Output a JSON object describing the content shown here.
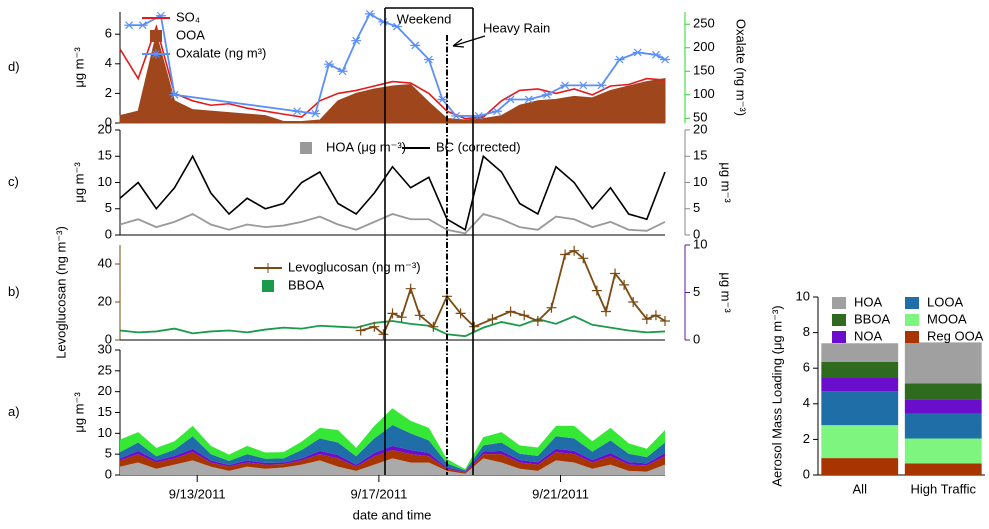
{
  "chart_data": [
    {
      "type": "line",
      "label": "d)",
      "ylabel": "μg m⁻³",
      "y2label": "Oxalate (ng m⁻³)",
      "y2color": "#22dd22",
      "xlim": [
        11.3,
        23.3
      ],
      "ylim": [
        0,
        7.5
      ],
      "yticks": [
        0,
        2,
        4,
        6
      ],
      "y2lim": [
        40,
        276
      ],
      "y2ticks": [
        50,
        100,
        150,
        200,
        250
      ],
      "annotations": [
        "Weekend",
        "Heavy Rain"
      ],
      "x": [
        11.3,
        11.7,
        12.1,
        12.5,
        12.9,
        13.3,
        13.7,
        14.1,
        14.5,
        14.9,
        15.3,
        15.7,
        16.1,
        16.5,
        16.9,
        17.3,
        17.7,
        18.1,
        18.5,
        18.9,
        19.3,
        19.7,
        20.1,
        20.5,
        20.9,
        21.3,
        21.7,
        22.1,
        22.5,
        22.9,
        23.3
      ],
      "series": [
        {
          "name": "SO₄",
          "color": "#e41a1c",
          "mark": "line",
          "values": [
            5,
            3,
            6.5,
            2,
            1.5,
            1.2,
            1.3,
            1.0,
            0.8,
            0.6,
            0.4,
            1.5,
            2.0,
            2.2,
            2.5,
            2.8,
            2.7,
            2.0,
            0.8,
            0.3,
            0.4,
            1.5,
            2.2,
            2.3,
            2.0,
            2.3,
            1.9,
            2.5,
            2.6,
            3.0,
            2.9
          ]
        },
        {
          "name": "OOA",
          "color": "#a0461c",
          "mark": "area",
          "values": [
            0.5,
            0.8,
            6.0,
            1.5,
            0.9,
            0.8,
            0.7,
            0.6,
            0.5,
            0.1,
            0.1,
            0.2,
            1.5,
            2.0,
            2.3,
            2.5,
            2.6,
            1.4,
            0.3,
            0.2,
            0.3,
            0.5,
            1.2,
            1.5,
            1.6,
            1.8,
            1.7,
            2.2,
            2.5,
            2.8,
            3.0
          ]
        },
        {
          "name": "Oxalate (ng m³)",
          "color": "#5b8ff9",
          "mark": "asterisk",
          "axis": "y2",
          "x": [
            11.5,
            11.8,
            12.2,
            12.5,
            15.2,
            15.6,
            15.9,
            16.2,
            16.5,
            16.8,
            17.1,
            17.4,
            17.8,
            18.1,
            18.4,
            18.7,
            19.2,
            19.6,
            19.9,
            20.3,
            20.7,
            21.1,
            21.5,
            21.9,
            22.3,
            22.7,
            23.1,
            23.3
          ],
          "values": [
            248,
            248,
            268,
            100,
            65,
            60,
            165,
            150,
            215,
            272,
            255,
            245,
            205,
            175,
            90,
            55,
            55,
            65,
            90,
            90,
            100,
            120,
            120,
            120,
            175,
            190,
            185,
            175
          ]
        }
      ]
    },
    {
      "type": "line",
      "label": "c)",
      "ylabel": "μg m⁻³",
      "y2label": "μg m⁻³",
      "y2color": "#888888",
      "xlim": [
        11.3,
        23.3
      ],
      "ylim": [
        0,
        20
      ],
      "yticks": [
        0,
        5,
        10,
        15,
        20
      ],
      "y2lim": [
        0,
        20
      ],
      "y2ticks": [
        0,
        5,
        10,
        15,
        20
      ],
      "x": [
        11.3,
        11.7,
        12.1,
        12.5,
        12.9,
        13.3,
        13.7,
        14.1,
        14.5,
        14.9,
        15.3,
        15.7,
        16.1,
        16.5,
        16.9,
        17.3,
        17.7,
        18.1,
        18.5,
        18.9,
        19.3,
        19.7,
        20.1,
        20.5,
        20.9,
        21.3,
        21.7,
        22.1,
        22.5,
        22.9,
        23.3
      ],
      "series": [
        {
          "name": "HOA (μg m⁻³)",
          "color": "#999999",
          "mark": "square-line",
          "axis": "y2",
          "values": [
            2,
            3,
            1.5,
            2.5,
            4,
            2,
            1,
            2,
            1.5,
            1.8,
            2.5,
            3.5,
            2,
            1,
            2.5,
            4,
            3,
            3,
            1,
            0.3,
            4,
            3,
            1.5,
            1,
            3.5,
            3,
            1.5,
            2.5,
            1,
            0.8,
            2.5
          ]
        },
        {
          "name": "BC (corrected)",
          "color": "#000000",
          "mark": "line",
          "values": [
            7,
            10,
            5,
            9,
            15,
            8,
            4,
            7,
            5,
            6,
            10,
            12,
            6,
            4,
            8,
            13,
            9,
            11,
            3,
            1,
            15,
            12,
            6,
            4,
            13,
            10,
            5,
            9,
            4,
            3,
            12
          ]
        }
      ]
    },
    {
      "type": "line",
      "label": "b)",
      "ylabel": "Levoglucosan (ng m⁻³)",
      "ycolor": "#7a4a10",
      "y2label": "μg m⁻³",
      "y2color": "#5a1a9a",
      "xlim": [
        11.3,
        23.3
      ],
      "ylim": [
        0,
        50
      ],
      "yticks": [
        0,
        20,
        40
      ],
      "y2lim": [
        0,
        10
      ],
      "y2ticks": [
        0,
        5,
        10
      ],
      "x": [
        11.3,
        11.7,
        12.1,
        12.5,
        12.9,
        13.3,
        13.7,
        14.1,
        14.5,
        14.9,
        15.3,
        15.7,
        16.1,
        16.5,
        16.9,
        17.3,
        17.7,
        18.1,
        18.5,
        18.9,
        19.3,
        19.7,
        20.1,
        20.5,
        20.9,
        21.3,
        21.7,
        22.1,
        22.5,
        22.9,
        23.3
      ],
      "series": [
        {
          "name": "Levoglucosan (ng m⁻³)",
          "color": "#7a4a10",
          "mark": "plus",
          "x": [
            16.6,
            16.9,
            17.1,
            17.3,
            17.5,
            17.7,
            17.9,
            18.2,
            18.5,
            18.8,
            19.1,
            19.5,
            19.9,
            20.2,
            20.5,
            20.8,
            21.1,
            21.3,
            21.5,
            21.8,
            22.0,
            22.2,
            22.4,
            22.6,
            22.9,
            23.1,
            23.3
          ],
          "values": [
            5,
            7,
            3,
            14,
            12,
            27,
            13,
            7,
            23,
            14,
            7,
            11,
            15,
            13,
            10,
            17,
            45,
            47,
            43,
            26,
            15,
            35,
            29,
            20,
            11,
            13,
            10
          ]
        },
        {
          "name": "BBOA",
          "color": "#1a9a4a",
          "mark": "square-line",
          "axis": "y2",
          "values": [
            1.0,
            0.8,
            0.9,
            1.2,
            0.7,
            0.9,
            1.0,
            0.8,
            1.1,
            1.3,
            1.2,
            1.5,
            1.4,
            1.3,
            1.8,
            2.0,
            1.7,
            1.5,
            0.6,
            0.4,
            1.3,
            1.9,
            1.5,
            2.2,
            1.7,
            2.5,
            1.6,
            1.3,
            1.0,
            0.8,
            0.9
          ]
        }
      ]
    },
    {
      "type": "area",
      "label": "a)",
      "ylabel": "μg m⁻³",
      "xlabel": "date and time",
      "stacked": true,
      "xlim": [
        11.3,
        23.3
      ],
      "ylim": [
        0,
        30
      ],
      "yticks": [
        0,
        5,
        10,
        15,
        20,
        25,
        30
      ],
      "xticks": [
        {
          "value": 13,
          "label": "9/13/2011"
        },
        {
          "value": 17,
          "label": "9/17/2011"
        },
        {
          "value": 21,
          "label": "9/21/2011"
        }
      ],
      "x": [
        11.3,
        11.7,
        12.1,
        12.5,
        12.9,
        13.3,
        13.7,
        14.1,
        14.5,
        14.9,
        15.3,
        15.7,
        16.1,
        16.5,
        16.9,
        17.3,
        17.7,
        18.1,
        18.5,
        18.9,
        19.3,
        19.7,
        20.1,
        20.5,
        20.9,
        21.3,
        21.7,
        22.1,
        22.5,
        22.9,
        23.3
      ],
      "series": [
        {
          "color": "#aaaaaa",
          "values": [
            2,
            3,
            1.5,
            2.5,
            3.5,
            2,
            1,
            2,
            1.5,
            1.8,
            2.5,
            3.5,
            2,
            1,
            2.5,
            4,
            3,
            3,
            1,
            0.3,
            4,
            3,
            1.5,
            1,
            3.5,
            3,
            1.5,
            2.5,
            1,
            0.8,
            2.5
          ]
        },
        {
          "color": "#a83400",
          "values": [
            1.5,
            2,
            1.5,
            1.5,
            2,
            1,
            1,
            1,
            1,
            0.8,
            1,
            1.5,
            2,
            1,
            2,
            2,
            2,
            1.5,
            0.5,
            0.3,
            1,
            2,
            1.5,
            1.5,
            2,
            2,
            1.5,
            2,
            1.5,
            1.5,
            2
          ]
        },
        {
          "color": "#6a0dcc",
          "values": [
            0.5,
            0.8,
            0.5,
            0.6,
            0.8,
            0.5,
            0.4,
            0.5,
            0.4,
            0.4,
            0.5,
            0.8,
            0.8,
            0.5,
            0.8,
            1,
            1,
            0.8,
            0.3,
            0.2,
            0.6,
            0.8,
            0.6,
            0.6,
            0.8,
            0.8,
            0.6,
            0.8,
            0.6,
            0.5,
            0.8
          ]
        },
        {
          "color": "#1f6ea8",
          "values": [
            1.5,
            2,
            1,
            1.5,
            3,
            1.5,
            1,
            1.5,
            1,
            1,
            2,
            3,
            3,
            2,
            3.5,
            5,
            4,
            3,
            1,
            0.3,
            1.5,
            2,
            1.5,
            1.5,
            3,
            3,
            2,
            3,
            2,
            1.5,
            2.5
          ]
        },
        {
          "color": "#36e836",
          "values": [
            3,
            2.5,
            2,
            2,
            2.5,
            2,
            1.5,
            2,
            1.5,
            1.5,
            2,
            2.5,
            3,
            2,
            3,
            4,
            3,
            3,
            1,
            0.3,
            2,
            2.5,
            2,
            2,
            2.5,
            3,
            2.5,
            3,
            2.5,
            2,
            3
          ]
        }
      ]
    },
    {
      "type": "bar",
      "stacked": true,
      "ylabel": "Aerosol Mass Loading (μg m⁻³)",
      "categories": [
        "All",
        "High Traffic"
      ],
      "ylim": [
        0,
        10
      ],
      "yticks": [
        0,
        2,
        4,
        6,
        8,
        10
      ],
      "series": [
        {
          "name": "Reg OOA",
          "color": "#a83400",
          "values": [
            0.95,
            0.65
          ]
        },
        {
          "name": "MOOA",
          "color": "#7ef57e",
          "values": [
            1.85,
            1.4
          ]
        },
        {
          "name": "LOOA",
          "color": "#1f6ea8",
          "values": [
            1.9,
            1.4
          ]
        },
        {
          "name": "NOA",
          "color": "#6a0dcc",
          "values": [
            0.8,
            0.8
          ]
        },
        {
          "name": "BBOA",
          "color": "#2e6b1f",
          "values": [
            0.85,
            0.9
          ]
        },
        {
          "name": "HOA",
          "color": "#a0a0a0",
          "values": [
            1.05,
            2.3
          ]
        }
      ]
    }
  ]
}
